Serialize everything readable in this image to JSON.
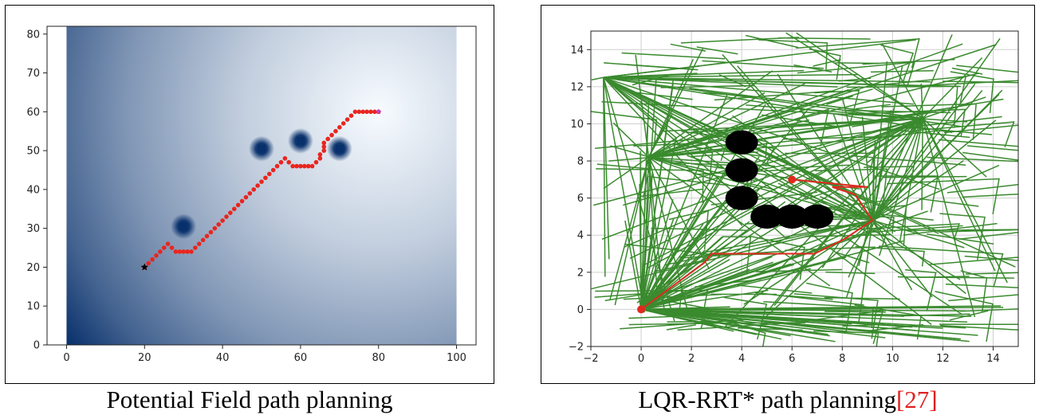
{
  "chart_data": [
    {
      "type": "heatmap",
      "caption": "Potential Field path planning",
      "xlim": [
        -5,
        105
      ],
      "ylim": [
        0,
        82
      ],
      "xticks": [
        "0",
        "20",
        "40",
        "60",
        "80",
        "100"
      ],
      "yticks": [
        "0",
        "10",
        "20",
        "30",
        "40",
        "50",
        "60",
        "70",
        "80"
      ],
      "field_extent": {
        "x": [
          0,
          100
        ],
        "y": [
          0,
          82
        ]
      },
      "colormap": {
        "low": "#f7fbff",
        "high": "#08306b"
      },
      "goal": [
        80,
        60
      ],
      "start": [
        20,
        20
      ],
      "obstacles": [
        [
          30,
          30.5
        ],
        [
          50,
          50.5
        ],
        [
          60,
          52.5
        ],
        [
          70,
          50.5
        ]
      ],
      "path": [
        [
          20,
          20
        ],
        [
          21,
          21
        ],
        [
          22,
          22
        ],
        [
          23,
          23
        ],
        [
          24,
          24
        ],
        [
          25,
          25
        ],
        [
          26,
          26
        ],
        [
          27,
          25
        ],
        [
          28,
          24
        ],
        [
          29,
          24
        ],
        [
          30,
          24
        ],
        [
          31,
          24
        ],
        [
          32,
          24
        ],
        [
          33,
          25
        ],
        [
          34,
          26
        ],
        [
          35,
          27
        ],
        [
          36,
          28
        ],
        [
          37,
          29
        ],
        [
          38,
          30
        ],
        [
          39,
          31
        ],
        [
          40,
          32
        ],
        [
          41,
          33
        ],
        [
          42,
          34
        ],
        [
          43,
          35
        ],
        [
          44,
          36
        ],
        [
          45,
          37
        ],
        [
          46,
          38
        ],
        [
          47,
          39
        ],
        [
          48,
          40
        ],
        [
          49,
          41
        ],
        [
          50,
          42
        ],
        [
          51,
          43
        ],
        [
          52,
          44
        ],
        [
          53,
          45
        ],
        [
          54,
          46
        ],
        [
          55,
          47
        ],
        [
          56,
          48
        ],
        [
          57,
          47
        ],
        [
          58,
          46
        ],
        [
          59,
          46
        ],
        [
          60,
          46
        ],
        [
          61,
          46
        ],
        [
          62,
          46
        ],
        [
          63,
          46
        ],
        [
          64,
          47
        ],
        [
          65,
          48
        ],
        [
          65,
          49
        ],
        [
          66,
          50
        ],
        [
          66,
          51
        ],
        [
          66,
          52
        ],
        [
          67,
          53
        ],
        [
          68,
          54
        ],
        [
          69,
          55
        ],
        [
          70,
          56
        ],
        [
          71,
          57
        ],
        [
          72,
          58
        ],
        [
          73,
          59
        ],
        [
          74,
          60
        ],
        [
          75,
          60
        ],
        [
          76,
          60
        ],
        [
          77,
          60
        ],
        [
          78,
          60
        ],
        [
          79,
          60
        ],
        [
          80,
          60
        ]
      ],
      "colors": {
        "path": "#e8261f",
        "start": "#000000",
        "goal": "#c040c0"
      }
    },
    {
      "type": "line",
      "caption": "LQR-RRT* path planning",
      "ref": "[27]",
      "xlim": [
        -2,
        15
      ],
      "ylim": [
        -2,
        15
      ],
      "xticks": [
        "−2",
        "0",
        "2",
        "4",
        "6",
        "8",
        "10",
        "12",
        "14"
      ],
      "yticks": [
        "−2",
        "0",
        "2",
        "4",
        "6",
        "8",
        "10",
        "12",
        "14"
      ],
      "grid": true,
      "start": [
        0,
        0
      ],
      "goal": [
        6,
        7
      ],
      "obstacles": [
        {
          "x": 4,
          "y": 9,
          "r": 0.65
        },
        {
          "x": 4,
          "y": 7.5,
          "r": 0.65
        },
        {
          "x": 4,
          "y": 6,
          "r": 0.65
        },
        {
          "x": 5,
          "y": 5,
          "r": 0.65
        },
        {
          "x": 6,
          "y": 5,
          "r": 0.65
        },
        {
          "x": 7,
          "y": 5,
          "r": 0.65
        }
      ],
      "path": [
        [
          0,
          0
        ],
        [
          2.5,
          2.5
        ],
        [
          2.8,
          3.0
        ],
        [
          5.0,
          3.0
        ],
        [
          6.9,
          3.0
        ],
        [
          8.1,
          3.8
        ],
        [
          9.2,
          4.8
        ],
        [
          8.5,
          6.2
        ],
        [
          7.8,
          6.5
        ],
        [
          7.6,
          6.6
        ],
        [
          9.0,
          6.6
        ],
        [
          6.0,
          7.0
        ]
      ],
      "tree_hubs": [
        [
          0,
          0
        ],
        [
          11.2,
          10.3
        ],
        [
          9.2,
          4.8
        ],
        [
          0.3,
          8.2
        ],
        [
          -1.5,
          12.5
        ]
      ],
      "colors": {
        "tree": "#3a8a2e",
        "path": "#e02a1f",
        "obstacle": "#000000",
        "grid": "#cfcfcf"
      }
    }
  ]
}
